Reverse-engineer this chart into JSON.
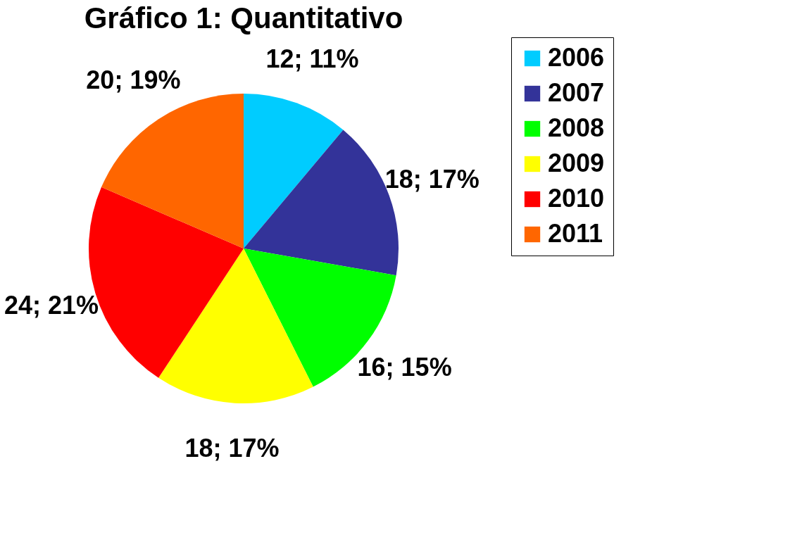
{
  "chart_data": {
    "type": "pie",
    "title": "Gráfico 1: Quantitativo",
    "categories": [
      "2006",
      "2007",
      "2008",
      "2009",
      "2010",
      "2011"
    ],
    "values": [
      12,
      18,
      16,
      18,
      24,
      20
    ],
    "colors": [
      "#00ccff",
      "#333399",
      "#00ff00",
      "#ffff00",
      "#ff0000",
      "#ff6600"
    ],
    "value_labels": [
      "12; 11%",
      "18; 17%",
      "16; 15%",
      "18; 17%",
      "24; 21%",
      "20; 19%"
    ],
    "legend": "right"
  }
}
